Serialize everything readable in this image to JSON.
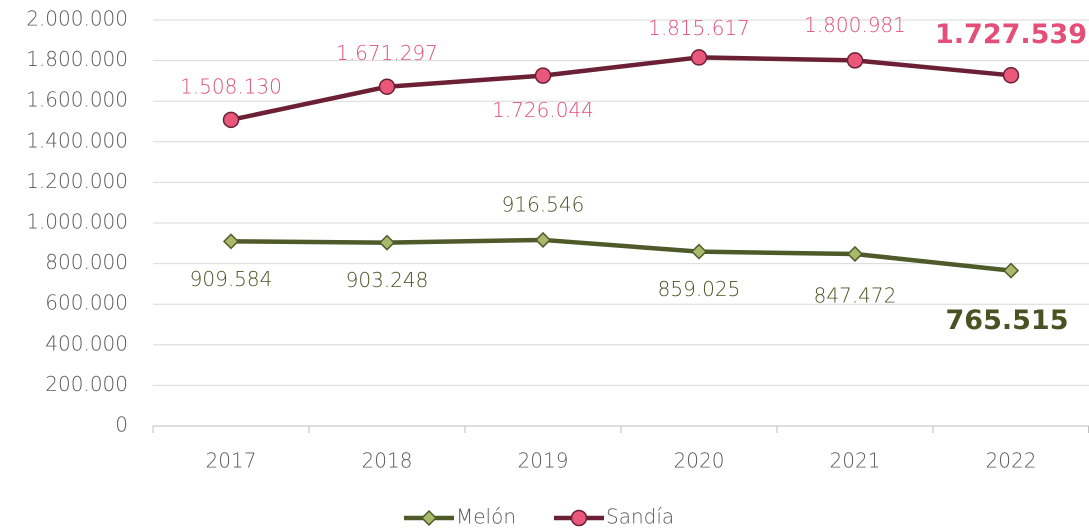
{
  "chart_data": {
    "type": "line",
    "categories": [
      "2017",
      "2018",
      "2019",
      "2020",
      "2021",
      "2022"
    ],
    "series": [
      {
        "name": "Melón",
        "color": "#4f5a2a",
        "marker": "diamond",
        "marker_color": "#a9b86a",
        "label_color": "#4a5223",
        "values": [
          909584,
          903248,
          916546,
          859025,
          847472,
          765515
        ],
        "value_labels": [
          "909.584",
          "903.248",
          "916.546",
          "859.025",
          "847.472",
          "765.515"
        ]
      },
      {
        "name": "Sandía",
        "color": "#6b2035",
        "marker": "circle",
        "marker_color": "#e9577a",
        "label_color": "#e34f78",
        "values": [
          1508130,
          1671297,
          1726044,
          1815617,
          1800981,
          1727539
        ],
        "value_labels": [
          "1.508.130",
          "1.671.297",
          "1.726.044",
          "1.815.617",
          "1.800.981",
          "1.727.539"
        ]
      }
    ],
    "ylim": [
      0,
      2000000
    ],
    "yticks": [
      0,
      {
        "value": 200000,
        "label": "200.000"
      },
      {
        "value": 400000,
        "label": "400.000"
      },
      {
        "value": 600000,
        "label": "600.000"
      },
      {
        "value": 800000,
        "label": "800.000"
      },
      {
        "value": 1000000,
        "label": "1.000.000"
      },
      {
        "value": 1200000,
        "label": "1.200.000"
      },
      {
        "value": 1400000,
        "label": "1.400.000"
      },
      {
        "value": 1600000,
        "label": "1.600.000"
      },
      {
        "value": 1800000,
        "label": "1.800.000"
      },
      {
        "value": 2000000,
        "label": "2.000.000"
      }
    ],
    "grid": true,
    "legend": "bottom"
  }
}
